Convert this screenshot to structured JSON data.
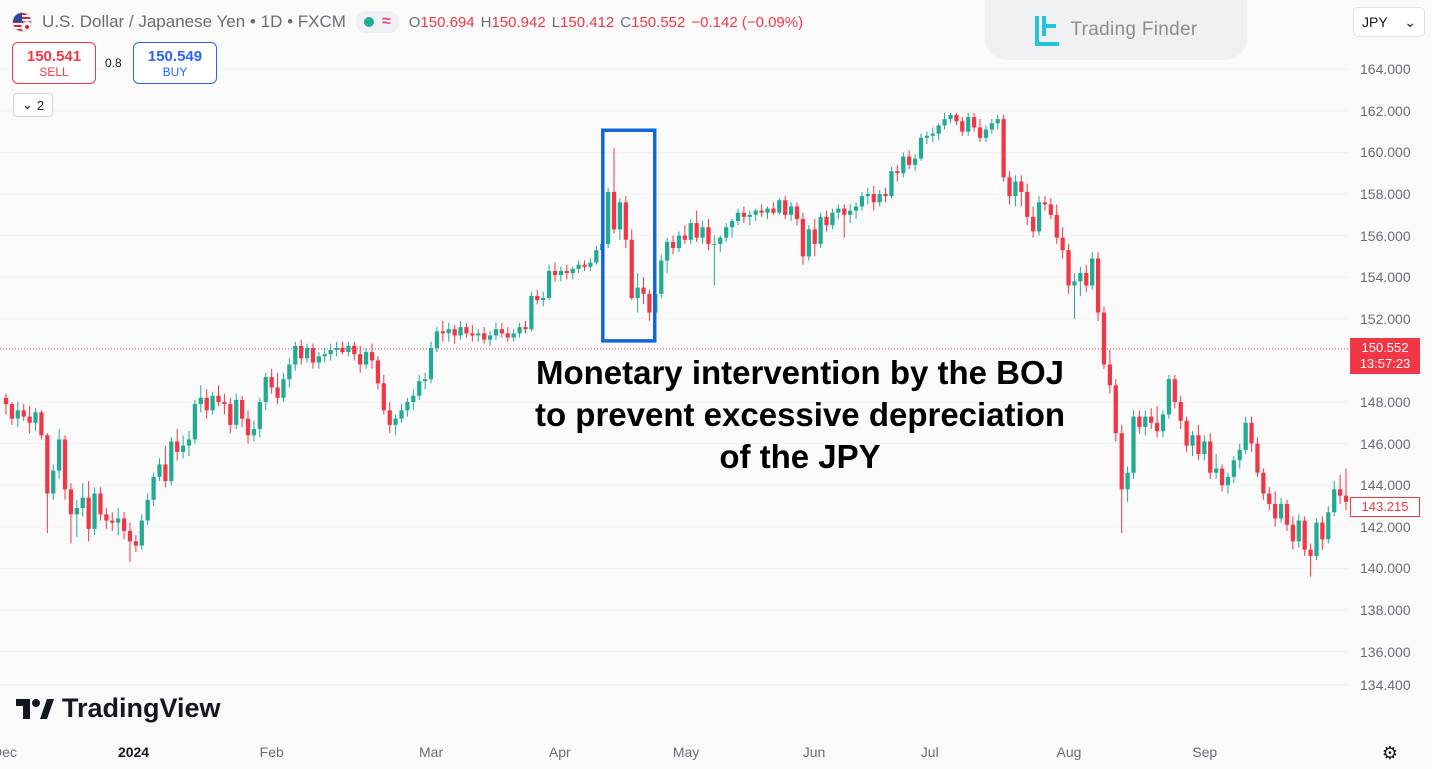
{
  "header": {
    "symbol_title": "U.S. Dollar / Japanese Yen",
    "interval": "1D",
    "exchange": "FXCM",
    "sep": "•",
    "ohlc": [
      {
        "k": "O",
        "v": "150.694"
      },
      {
        "k": "H",
        "v": "150.942"
      },
      {
        "k": "L",
        "v": "150.412"
      },
      {
        "k": "C",
        "v": "150.552"
      },
      {
        "k": "",
        "v": "−0.142 (−0.09%)"
      }
    ]
  },
  "trade": {
    "sell_price": "150.541",
    "sell_label": "SELL",
    "buy_price": "150.549",
    "buy_label": "BUY",
    "spread": "0.8"
  },
  "indicators_toggle": {
    "count": "2"
  },
  "watermark": {
    "brand": "Trading Finder"
  },
  "currency_select": {
    "value": "JPY"
  },
  "price_axis": {
    "ticks": [
      "164.000",
      "162.000",
      "160.000",
      "158.000",
      "156.000",
      "154.000",
      "152.000",
      "148.000",
      "146.000",
      "144.000",
      "142.000",
      "140.000",
      "138.000",
      "136.000",
      "134.400"
    ],
    "last_price": "150.552",
    "countdown": "13:57:23",
    "marker_price": "143.215"
  },
  "time_axis": {
    "labels": [
      "Dec",
      "2024",
      "Feb",
      "Mar",
      "Apr",
      "May",
      "Jun",
      "Jul",
      "Aug",
      "Sep"
    ]
  },
  "annotation": {
    "line1": "Monetary intervention by the BOJ",
    "line2": "to prevent excessive depreciation",
    "line3": "of the JPY"
  },
  "tradingview_logo": "TradingView",
  "colors": {
    "up": "#22ab94",
    "down": "#f23645",
    "highlight_box": "#1565d8",
    "last_price_line": "#f23645"
  },
  "icons": {
    "settings": "gear-icon",
    "collapse": "chevron-down-icon"
  },
  "chart_data": {
    "type": "candlestick",
    "title": "U.S. Dollar / Japanese Yen • 1D • FXCM",
    "ylim": [
      134.4,
      165
    ],
    "y_ticks": [
      164,
      162,
      160,
      158,
      156,
      154,
      152,
      148,
      146,
      144,
      142,
      140,
      138,
      136,
      134.4
    ],
    "x_labels": [
      "Dec",
      "2024",
      "Feb",
      "Mar",
      "Apr",
      "May",
      "Jun",
      "Jul",
      "Aug",
      "Sep"
    ],
    "last_close": 150.552,
    "highlight": {
      "from_index": 102,
      "to_index": 109,
      "low": 151.9,
      "high": 160.2
    },
    "candles": [
      [
        148.2,
        148.4,
        147.4,
        147.9
      ],
      [
        147.9,
        148.0,
        146.9,
        147.2
      ],
      [
        147.2,
        148.0,
        146.8,
        147.6
      ],
      [
        147.6,
        147.9,
        147.1,
        147.3
      ],
      [
        147.3,
        147.8,
        146.5,
        147.0
      ],
      [
        147.0,
        147.7,
        146.6,
        147.5
      ],
      [
        147.5,
        147.6,
        146.2,
        146.4
      ],
      [
        146.4,
        146.5,
        141.7,
        143.6
      ],
      [
        143.6,
        145.0,
        143.3,
        144.7
      ],
      [
        144.7,
        146.7,
        144.3,
        146.2
      ],
      [
        146.2,
        146.4,
        143.3,
        143.8
      ],
      [
        143.8,
        144.1,
        141.2,
        142.6
      ],
      [
        142.6,
        143.3,
        141.5,
        142.9
      ],
      [
        142.9,
        144.1,
        142.5,
        143.4
      ],
      [
        143.4,
        144.2,
        141.3,
        141.9
      ],
      [
        141.9,
        143.9,
        141.6,
        143.6
      ],
      [
        143.6,
        143.9,
        142.3,
        142.6
      ],
      [
        142.6,
        142.9,
        141.9,
        142.3
      ],
      [
        142.3,
        142.7,
        141.8,
        142.2
      ],
      [
        142.2,
        142.9,
        141.6,
        142.4
      ],
      [
        142.4,
        142.7,
        141.4,
        141.8
      ],
      [
        141.8,
        142.2,
        140.3,
        141.3
      ],
      [
        141.3,
        141.6,
        140.8,
        141.1
      ],
      [
        141.1,
        142.6,
        140.9,
        142.3
      ],
      [
        142.3,
        143.6,
        142.1,
        143.3
      ],
      [
        143.3,
        144.6,
        143.0,
        144.4
      ],
      [
        144.4,
        145.3,
        144.2,
        145.0
      ],
      [
        145.0,
        145.9,
        143.9,
        144.2
      ],
      [
        144.2,
        146.3,
        144.0,
        146.1
      ],
      [
        146.1,
        146.7,
        145.2,
        145.6
      ],
      [
        145.6,
        146.4,
        145.3,
        145.9
      ],
      [
        145.9,
        146.6,
        145.4,
        146.2
      ],
      [
        146.2,
        148.1,
        146.0,
        147.9
      ],
      [
        147.9,
        148.8,
        147.5,
        148.2
      ],
      [
        148.2,
        148.6,
        147.2,
        147.6
      ],
      [
        147.6,
        148.5,
        147.4,
        148.3
      ],
      [
        148.3,
        148.8,
        147.8,
        148.0
      ],
      [
        148.0,
        148.4,
        147.4,
        147.9
      ],
      [
        147.9,
        148.2,
        146.5,
        146.9
      ],
      [
        146.9,
        148.4,
        146.7,
        148.1
      ],
      [
        148.1,
        148.3,
        146.8,
        147.2
      ],
      [
        147.2,
        147.6,
        146.0,
        146.4
      ],
      [
        146.4,
        147.1,
        146.1,
        146.7
      ],
      [
        146.7,
        148.2,
        146.3,
        148.0
      ],
      [
        148.0,
        149.4,
        147.6,
        149.2
      ],
      [
        149.2,
        149.6,
        148.4,
        148.7
      ],
      [
        148.7,
        149.4,
        147.9,
        148.2
      ],
      [
        148.2,
        149.4,
        148.0,
        149.1
      ],
      [
        149.1,
        150.1,
        148.7,
        149.8
      ],
      [
        149.8,
        150.9,
        149.5,
        150.7
      ],
      [
        150.7,
        151.0,
        149.8,
        150.1
      ],
      [
        150.1,
        150.8,
        149.9,
        150.6
      ],
      [
        150.6,
        150.8,
        149.6,
        149.9
      ],
      [
        149.9,
        150.4,
        149.6,
        150.2
      ],
      [
        150.2,
        150.6,
        149.9,
        150.3
      ],
      [
        150.3,
        150.8,
        150.0,
        150.5
      ],
      [
        150.5,
        150.9,
        150.2,
        150.6
      ],
      [
        150.6,
        150.9,
        150.3,
        150.4
      ],
      [
        150.4,
        150.9,
        150.2,
        150.7
      ],
      [
        150.7,
        150.9,
        150.0,
        150.3
      ],
      [
        150.3,
        150.7,
        149.4,
        149.8
      ],
      [
        149.8,
        150.6,
        149.6,
        150.4
      ],
      [
        150.4,
        150.8,
        149.6,
        150.0
      ],
      [
        150.0,
        150.2,
        148.6,
        148.9
      ],
      [
        148.9,
        149.3,
        147.4,
        147.6
      ],
      [
        147.6,
        148.0,
        146.5,
        146.9
      ],
      [
        146.9,
        147.4,
        146.4,
        147.2
      ],
      [
        147.2,
        147.9,
        147.0,
        147.6
      ],
      [
        147.6,
        148.2,
        147.3,
        148.0
      ],
      [
        148.0,
        148.6,
        147.6,
        148.3
      ],
      [
        148.3,
        149.3,
        148.1,
        149.0
      ],
      [
        149.0,
        149.4,
        148.6,
        149.1
      ],
      [
        149.1,
        150.9,
        148.9,
        150.6
      ],
      [
        150.6,
        151.6,
        150.4,
        151.4
      ],
      [
        151.4,
        151.9,
        150.9,
        151.3
      ],
      [
        151.3,
        151.8,
        150.9,
        151.5
      ],
      [
        151.5,
        151.7,
        150.8,
        151.2
      ],
      [
        151.2,
        151.9,
        151.0,
        151.6
      ],
      [
        151.6,
        151.8,
        151.1,
        151.3
      ],
      [
        151.3,
        151.7,
        150.9,
        151.2
      ],
      [
        151.2,
        151.5,
        150.9,
        151.3
      ],
      [
        151.3,
        151.6,
        150.8,
        151.0
      ],
      [
        151.0,
        151.4,
        150.7,
        151.2
      ],
      [
        151.2,
        151.8,
        151.0,
        151.5
      ],
      [
        151.5,
        151.8,
        151.1,
        151.3
      ],
      [
        151.3,
        151.6,
        150.9,
        151.1
      ],
      [
        151.1,
        151.5,
        150.9,
        151.3
      ],
      [
        151.3,
        151.8,
        151.1,
        151.6
      ],
      [
        151.6,
        151.9,
        151.3,
        151.5
      ],
      [
        151.5,
        153.3,
        151.4,
        153.1
      ],
      [
        153.1,
        153.4,
        152.7,
        152.9
      ],
      [
        152.9,
        153.3,
        152.6,
        153.0
      ],
      [
        153.0,
        154.6,
        152.9,
        154.3
      ],
      [
        154.3,
        154.7,
        153.8,
        154.1
      ],
      [
        154.1,
        154.5,
        153.8,
        154.3
      ],
      [
        154.3,
        154.6,
        153.9,
        154.2
      ],
      [
        154.2,
        154.5,
        153.9,
        154.4
      ],
      [
        154.4,
        154.8,
        154.2,
        154.6
      ],
      [
        154.6,
        154.8,
        154.3,
        154.5
      ],
      [
        154.5,
        154.9,
        154.3,
        154.7
      ],
      [
        154.7,
        155.5,
        154.6,
        155.3
      ],
      [
        155.3,
        155.8,
        155.0,
        155.6
      ],
      [
        155.6,
        158.3,
        155.4,
        158.1
      ],
      [
        158.1,
        160.2,
        156.1,
        156.3
      ],
      [
        156.3,
        157.8,
        155.8,
        157.6
      ],
      [
        157.6,
        157.9,
        155.4,
        155.8
      ],
      [
        155.8,
        156.3,
        152.9,
        153.0
      ],
      [
        153.0,
        154.2,
        152.3,
        153.5
      ],
      [
        153.5,
        154.0,
        152.7,
        153.2
      ],
      [
        153.2,
        153.4,
        151.9,
        152.3
      ],
      [
        152.3,
        153.4,
        152.0,
        153.2
      ],
      [
        153.2,
        155.1,
        153.0,
        154.8
      ],
      [
        154.8,
        155.9,
        154.2,
        155.7
      ],
      [
        155.7,
        156.0,
        155.1,
        155.4
      ],
      [
        155.4,
        156.2,
        155.2,
        156.0
      ],
      [
        156.0,
        156.5,
        155.6,
        155.8
      ],
      [
        155.8,
        156.8,
        155.6,
        156.6
      ],
      [
        156.6,
        157.2,
        155.7,
        155.9
      ],
      [
        155.9,
        156.7,
        155.6,
        156.4
      ],
      [
        156.4,
        156.8,
        155.3,
        155.6
      ],
      [
        155.6,
        156.0,
        153.6,
        155.6
      ],
      [
        155.6,
        156.0,
        155.2,
        155.9
      ],
      [
        155.9,
        156.6,
        155.7,
        156.4
      ],
      [
        156.4,
        156.8,
        155.9,
        156.7
      ],
      [
        156.7,
        157.3,
        156.5,
        157.1
      ],
      [
        157.1,
        157.4,
        156.6,
        156.9
      ],
      [
        156.9,
        157.2,
        156.5,
        157.0
      ],
      [
        157.0,
        157.3,
        156.7,
        157.2
      ],
      [
        157.2,
        157.5,
        156.9,
        157.1
      ],
      [
        157.1,
        157.4,
        156.8,
        157.3
      ],
      [
        157.3,
        157.6,
        157.0,
        157.1
      ],
      [
        157.1,
        157.8,
        157.0,
        157.7
      ],
      [
        157.7,
        157.9,
        156.8,
        157.0
      ],
      [
        157.0,
        157.6,
        156.7,
        157.4
      ],
      [
        157.4,
        157.6,
        156.5,
        156.8
      ],
      [
        156.8,
        157.1,
        154.6,
        155.0
      ],
      [
        155.0,
        156.5,
        154.8,
        156.3
      ],
      [
        156.3,
        156.8,
        155.0,
        155.6
      ],
      [
        155.6,
        157.1,
        155.4,
        156.9
      ],
      [
        156.9,
        157.2,
        156.2,
        156.5
      ],
      [
        156.5,
        157.3,
        156.3,
        157.1
      ],
      [
        157.1,
        157.5,
        156.8,
        157.3
      ],
      [
        157.3,
        157.5,
        155.9,
        157.0
      ],
      [
        157.0,
        157.5,
        156.6,
        157.2
      ],
      [
        157.2,
        157.6,
        156.8,
        157.4
      ],
      [
        157.4,
        158.1,
        157.2,
        157.9
      ],
      [
        157.9,
        158.3,
        157.5,
        158.0
      ],
      [
        158.0,
        158.4,
        157.2,
        157.6
      ],
      [
        157.6,
        158.2,
        157.4,
        158.0
      ],
      [
        158.0,
        158.3,
        157.6,
        157.9
      ],
      [
        157.9,
        159.3,
        157.8,
        159.1
      ],
      [
        159.1,
        159.4,
        158.6,
        159.0
      ],
      [
        159.0,
        160.0,
        158.8,
        159.8
      ],
      [
        159.8,
        160.1,
        159.2,
        159.4
      ],
      [
        159.4,
        159.9,
        159.1,
        159.7
      ],
      [
        159.7,
        160.9,
        159.6,
        160.7
      ],
      [
        160.7,
        161.0,
        160.4,
        160.8
      ],
      [
        160.8,
        161.2,
        160.5,
        160.9
      ],
      [
        160.9,
        161.4,
        160.6,
        161.3
      ],
      [
        161.3,
        161.9,
        161.1,
        161.6
      ],
      [
        161.6,
        161.9,
        161.4,
        161.8
      ],
      [
        161.8,
        161.9,
        161.3,
        161.5
      ],
      [
        161.5,
        161.7,
        160.8,
        161.0
      ],
      [
        161.0,
        161.9,
        160.8,
        161.7
      ],
      [
        161.7,
        161.9,
        161.0,
        161.2
      ],
      [
        161.2,
        161.6,
        160.5,
        160.7
      ],
      [
        160.7,
        161.3,
        160.5,
        161.1
      ],
      [
        161.1,
        161.6,
        160.9,
        161.4
      ],
      [
        161.4,
        161.8,
        161.1,
        161.6
      ],
      [
        161.6,
        161.8,
        158.6,
        158.8
      ],
      [
        158.8,
        159.1,
        157.5,
        157.9
      ],
      [
        157.9,
        158.9,
        157.4,
        158.6
      ],
      [
        158.6,
        158.9,
        157.4,
        158.1
      ],
      [
        158.1,
        158.5,
        156.5,
        156.9
      ],
      [
        156.9,
        157.4,
        155.9,
        156.2
      ],
      [
        156.2,
        157.9,
        156.0,
        157.6
      ],
      [
        157.6,
        157.9,
        157.2,
        157.5
      ],
      [
        157.5,
        157.8,
        156.8,
        157.0
      ],
      [
        157.0,
        157.5,
        155.6,
        155.9
      ],
      [
        155.9,
        156.4,
        154.9,
        155.3
      ],
      [
        155.3,
        155.6,
        153.2,
        153.6
      ],
      [
        153.6,
        154.2,
        152.0,
        153.8
      ],
      [
        153.8,
        154.5,
        153.1,
        154.2
      ],
      [
        154.2,
        154.6,
        153.3,
        153.6
      ],
      [
        153.6,
        155.2,
        153.4,
        154.9
      ],
      [
        154.9,
        155.2,
        151.9,
        152.3
      ],
      [
        152.3,
        152.6,
        149.6,
        149.8
      ],
      [
        149.8,
        150.5,
        148.4,
        148.8
      ],
      [
        148.8,
        149.1,
        146.1,
        146.5
      ],
      [
        146.5,
        146.9,
        141.7,
        143.8
      ],
      [
        143.8,
        144.9,
        143.2,
        144.6
      ],
      [
        144.6,
        147.6,
        144.3,
        147.3
      ],
      [
        147.3,
        147.6,
        146.5,
        146.8
      ],
      [
        146.8,
        147.6,
        146.4,
        147.3
      ],
      [
        147.3,
        147.7,
        146.7,
        147.0
      ],
      [
        147.0,
        147.8,
        146.3,
        146.6
      ],
      [
        146.6,
        147.6,
        146.3,
        147.4
      ],
      [
        147.4,
        149.3,
        147.2,
        149.1
      ],
      [
        149.1,
        149.3,
        147.7,
        148.0
      ],
      [
        148.0,
        148.3,
        146.7,
        147.1
      ],
      [
        147.1,
        147.3,
        145.6,
        145.9
      ],
      [
        145.9,
        146.6,
        145.4,
        146.4
      ],
      [
        146.4,
        146.9,
        145.2,
        145.5
      ],
      [
        145.5,
        146.4,
        145.2,
        146.1
      ],
      [
        146.1,
        146.5,
        144.3,
        144.6
      ],
      [
        144.6,
        145.5,
        144.3,
        144.8
      ],
      [
        144.8,
        145.0,
        143.7,
        144.0
      ],
      [
        144.0,
        144.6,
        143.6,
        144.4
      ],
      [
        144.4,
        145.4,
        144.1,
        145.2
      ],
      [
        145.2,
        146.0,
        144.8,
        145.7
      ],
      [
        145.7,
        147.3,
        145.5,
        147.0
      ],
      [
        147.0,
        147.3,
        145.6,
        146.0
      ],
      [
        146.0,
        146.3,
        144.4,
        144.6
      ],
      [
        144.6,
        144.8,
        143.3,
        143.6
      ],
      [
        143.6,
        143.9,
        142.8,
        143.1
      ],
      [
        143.1,
        143.7,
        142.0,
        142.4
      ],
      [
        142.4,
        143.4,
        142.2,
        143.1
      ],
      [
        143.1,
        143.3,
        141.8,
        142.1
      ],
      [
        142.1,
        142.5,
        140.9,
        141.3
      ],
      [
        141.3,
        142.6,
        141.0,
        142.3
      ],
      [
        142.3,
        142.5,
        140.6,
        140.9
      ],
      [
        140.9,
        141.2,
        139.6,
        140.6
      ],
      [
        140.6,
        142.4,
        140.4,
        142.2
      ],
      [
        142.2,
        142.5,
        140.9,
        141.4
      ],
      [
        141.4,
        143.0,
        141.2,
        142.7
      ],
      [
        142.7,
        144.2,
        142.5,
        143.8
      ],
      [
        143.8,
        144.5,
        143.1,
        143.5
      ],
      [
        143.5,
        144.8,
        142.8,
        143.2
      ]
    ]
  }
}
